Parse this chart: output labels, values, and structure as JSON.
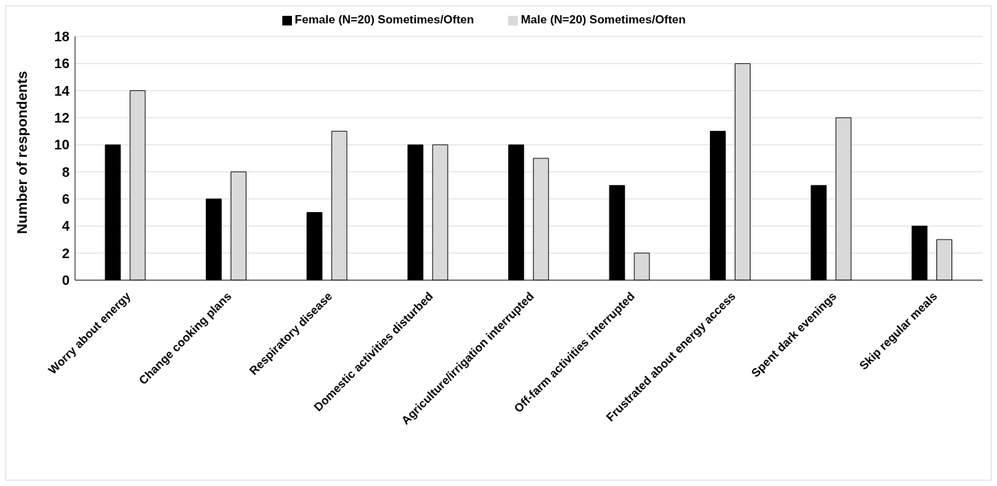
{
  "chart_data": {
    "type": "bar",
    "ylabel": "Number of respondents",
    "categories": [
      "Worry about energy",
      "Change cooking  plans",
      "Respiratory disease",
      "Domestic activities disturbed",
      "Agriculture/irrigation interrupted",
      "Off-farm activities interrupted",
      "Frustrated about energy access",
      "Spent dark evenings",
      "Skip regular meals"
    ],
    "series": [
      {
        "name": "Female (N=20) Sometimes/Often",
        "color": "#000000",
        "values": [
          10,
          6,
          5,
          10,
          10,
          7,
          11,
          7,
          4
        ]
      },
      {
        "name": "Male (N=20) Sometimes/Often",
        "color": "#d9d9d9",
        "values": [
          14,
          8,
          11,
          10,
          9,
          2,
          16,
          12,
          3
        ]
      }
    ],
    "ylim": [
      0,
      18
    ],
    "yticks": [
      0,
      2,
      4,
      6,
      8,
      10,
      12,
      14,
      16,
      18
    ],
    "grid": "y",
    "legend": "top"
  }
}
